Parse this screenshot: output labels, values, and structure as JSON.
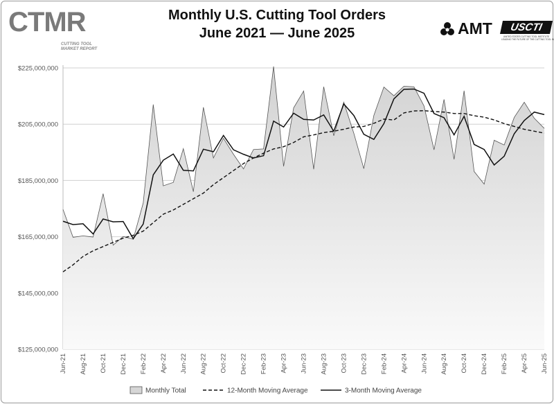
{
  "header": {
    "logo_text": "CTMR",
    "logo_sub1": "CUTTING TOOL",
    "logo_sub2": "MARKET REPORT",
    "amt_label": "AMT",
    "uscti_label": "USCTI",
    "uscti_sub1": "UNITED STATES CUTTING TOOL INSTITUTE",
    "uscti_sub2": "LEADING THE FUTURE OF THE CUTTING TOOL INDUSTRY"
  },
  "chart_data": {
    "type": "area",
    "title": "Monthly U.S. Cutting Tool Orders",
    "subtitle": "June 2021 — June 2025",
    "xlabel": "",
    "ylabel": "",
    "ylim": [
      125000000,
      230000000
    ],
    "yticks": [
      125000000,
      145000000,
      165000000,
      185000000,
      205000000,
      225000000
    ],
    "ytick_labels": [
      "$125,000,000",
      "$145,000,000",
      "$165,000,000",
      "$185,000,000",
      "$205,000,000",
      "$225,000,000"
    ],
    "x_tick_labels": [
      "Jun-21",
      "Aug-21",
      "Oct-21",
      "Dec-21",
      "Feb-22",
      "Apr-22",
      "Jun-22",
      "Aug-22",
      "Oct-22",
      "Dec-22",
      "Feb-23",
      "Apr-23",
      "Jun-23",
      "Aug-23",
      "Oct-23",
      "Dec-23",
      "Feb-24",
      "Apr-24",
      "Jun-24",
      "Aug-24",
      "Oct-24",
      "Dec-24",
      "Feb-25",
      "Apr-25",
      "Jun-25"
    ],
    "grid": true,
    "legend": "bottom",
    "series": [
      {
        "name": "Monthly Total",
        "style": "area",
        "values": [
          174700000,
          164800000,
          165300000,
          164900000,
          180300000,
          162000000,
          165100000,
          164100000,
          177000000,
          212000000,
          183100000,
          184300000,
          196300000,
          181000000,
          211000000,
          193000000,
          200000000,
          194300000,
          189100000,
          196000000,
          196200000,
          225500000,
          190000000,
          210800000,
          216800000,
          189000000,
          218300000,
          200900000,
          212800000,
          201800000,
          189200000,
          208100000,
          218200000,
          215100000,
          218500000,
          218300000,
          211500000,
          195900000,
          213800000,
          192500000,
          216900000,
          188200000,
          183700000,
          199300000,
          197600000,
          207400000,
          212800000,
          207100000,
          203500000
        ]
      },
      {
        "name": "12-Month Moving Average",
        "style": "dashed",
        "values": [
          152500000,
          155000000,
          158000000,
          160000000,
          161500000,
          163000000,
          164500000,
          165500000,
          167000000,
          170000000,
          173000000,
          174500000,
          176500000,
          178500000,
          180500000,
          183500000,
          186000000,
          188500000,
          191000000,
          193000000,
          194700000,
          196200000,
          197000000,
          198500000,
          200500000,
          201200000,
          202000000,
          202500000,
          203200000,
          204000000,
          204200000,
          205300000,
          206800000,
          206500000,
          209000000,
          209700000,
          209800000,
          209500000,
          209300000,
          208800000,
          208800000,
          208000000,
          207500000,
          206500000,
          205200000,
          204200000,
          203200000,
          202500000,
          201800000
        ]
      },
      {
        "name": "3-Month Moving Average",
        "style": "solid",
        "values": [
          170500000,
          169300000,
          169600000,
          166000000,
          171300000,
          170300000,
          170400000,
          164300000,
          169500000,
          187000000,
          192200000,
          194400000,
          188600000,
          188400000,
          196100000,
          195200000,
          201000000,
          195900000,
          194300000,
          193000000,
          193800000,
          206100000,
          204000000,
          208900000,
          206700000,
          206500000,
          208300000,
          202500000,
          212200000,
          208100000,
          201400000,
          199600000,
          205200000,
          214000000,
          217400000,
          217500000,
          216000000,
          208800000,
          207300000,
          201200000,
          207800000,
          197800000,
          196000000,
          190500000,
          193600000,
          201600000,
          206300000,
          209300000,
          208400000
        ]
      }
    ]
  }
}
